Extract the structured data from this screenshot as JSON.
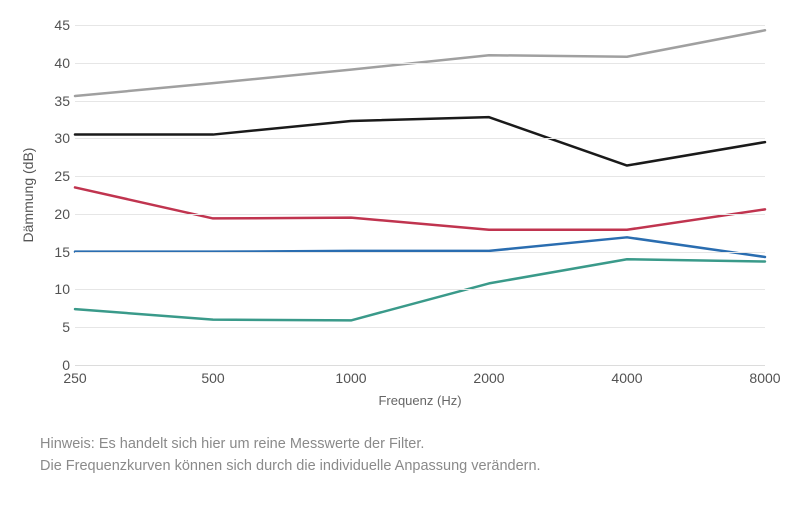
{
  "chart": {
    "type": "line",
    "y_axis": {
      "label": "Dämmung (dB)",
      "min": 0,
      "max": 45,
      "tick_step": 5,
      "label_fontsize": 14,
      "tick_fontsize": 14,
      "tick_color": "#525252"
    },
    "x_axis": {
      "label": "Frequenz (Hz)",
      "categories": [
        "250",
        "500",
        "1000",
        "2000",
        "4000",
        "8000"
      ],
      "label_fontsize": 13,
      "tick_fontsize": 14,
      "tick_color": "#525252"
    },
    "grid_color": "#e6e6e6",
    "background_color": "#ffffff",
    "line_width": 2.5,
    "series": [
      {
        "name": "grey",
        "color": "#a0a0a0",
        "values": [
          35.6,
          37.3,
          39.1,
          41.0,
          40.8,
          44.3
        ]
      },
      {
        "name": "black",
        "color": "#1a1a1a",
        "values": [
          30.5,
          30.5,
          32.3,
          32.8,
          26.4,
          29.5
        ]
      },
      {
        "name": "red",
        "color": "#c0344f",
        "values": [
          23.5,
          19.4,
          19.5,
          17.9,
          17.9,
          20.6
        ]
      },
      {
        "name": "blue",
        "color": "#2a6db0",
        "values": [
          15.0,
          15.0,
          15.1,
          15.1,
          16.9,
          14.3
        ]
      },
      {
        "name": "teal",
        "color": "#3a9a8a",
        "values": [
          7.4,
          6.0,
          5.9,
          10.8,
          14.0,
          13.7
        ]
      }
    ]
  },
  "footnote": {
    "line1": "Hinweis: Es handelt sich hier um reine Messwerte der Filter.",
    "line2": "Die Frequenzkurven können sich durch die individuelle Anpassung verändern.",
    "color": "#8a8a8a",
    "fontsize": 14.5
  }
}
